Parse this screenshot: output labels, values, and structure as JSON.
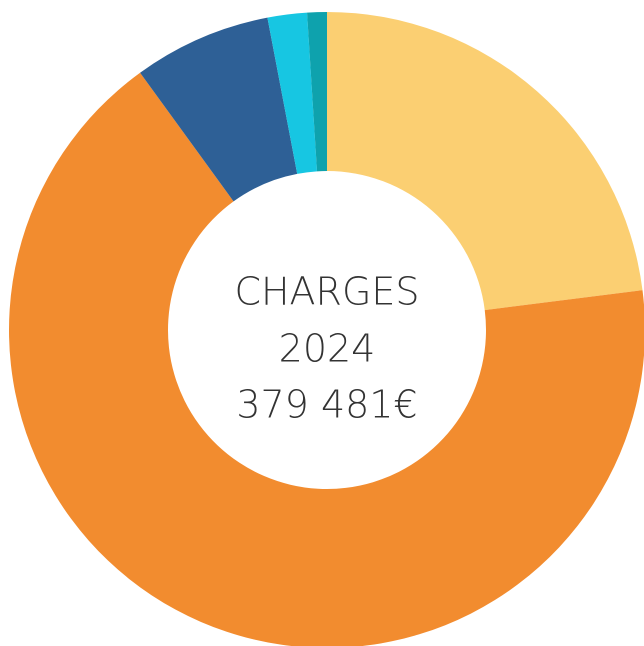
{
  "chart_data": {
    "type": "donut",
    "center_text": [
      "CHARGES",
      "2024",
      "379 481€"
    ],
    "categories": [
      null,
      null,
      null,
      null,
      null
    ],
    "values": [
      23,
      67,
      7,
      2,
      1
    ],
    "colors": [
      "#fbcf72",
      "#f28c2f",
      "#2e6096",
      "#17c6e2",
      "#0ea2ad"
    ]
  }
}
